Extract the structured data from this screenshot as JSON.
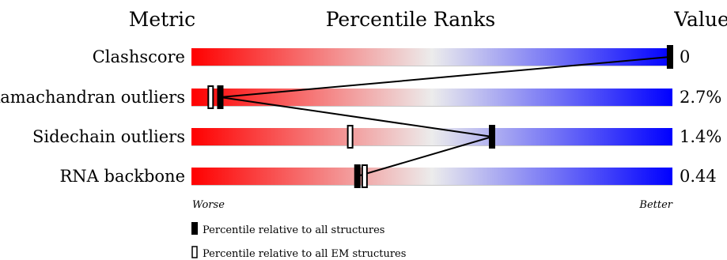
{
  "chart_data": {
    "type": "percentile-slider",
    "title": "Percentile Ranks",
    "header": {
      "metric": "Metric",
      "ranks": "Percentile Ranks",
      "value": "Value"
    },
    "scale": {
      "min": 0,
      "max": 100,
      "left_label": "Worse",
      "right_label": "Better"
    },
    "colors": {
      "worse": "#ff0000",
      "middle": "#ececec",
      "better": "#0000ff",
      "marker": "#000000"
    },
    "metrics": [
      {
        "name": "Clashscore",
        "value_text": "0",
        "all_percentile": 99.5,
        "em_percentile": 99.5
      },
      {
        "name": "Ramachandran outliers",
        "value_text": "2.7%",
        "all_percentile": 6,
        "em_percentile": 4
      },
      {
        "name": "Sidechain outliers",
        "value_text": "1.4%",
        "all_percentile": 62.5,
        "em_percentile": 33
      },
      {
        "name": "RNA backbone",
        "value_text": "0.44",
        "all_percentile": 34.5,
        "em_percentile": 36
      }
    ],
    "legend": [
      {
        "marker": "filled",
        "label": "Percentile relative to all structures"
      },
      {
        "marker": "open",
        "label": "Percentile relative to all EM structures"
      }
    ]
  }
}
